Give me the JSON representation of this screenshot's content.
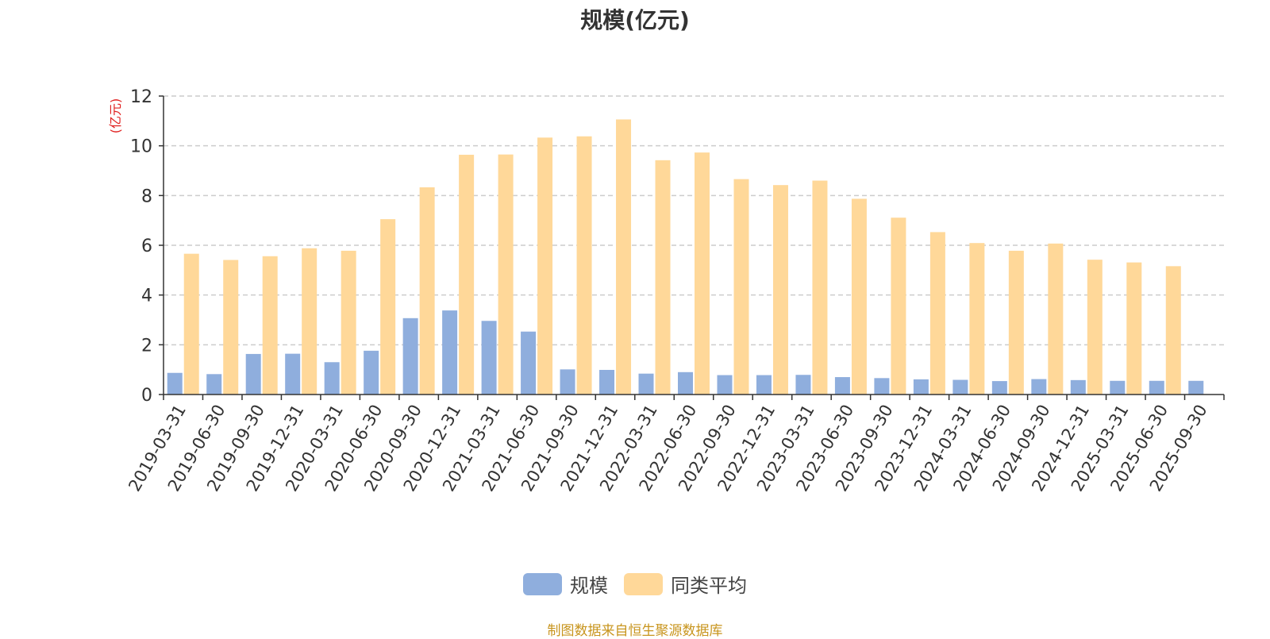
{
  "colors": {
    "series1": "#8faedd",
    "series2": "#ffd899",
    "axis": "#333333",
    "grid": "#cccccc",
    "tick_label": "#333333",
    "unit_label": "#e0201f",
    "source": "#c8951e"
  },
  "chart_data": {
    "type": "bar",
    "title": "规模(亿元)",
    "y_unit": "(亿元)",
    "grid": true,
    "legend_position": "bottom",
    "ylim": [
      0,
      12
    ],
    "yticks": [
      0,
      2,
      4,
      6,
      8,
      10,
      12
    ],
    "categories": [
      "2019-03-31",
      "2019-06-30",
      "2019-09-30",
      "2019-12-31",
      "2020-03-31",
      "2020-06-30",
      "2020-09-30",
      "2020-12-31",
      "2021-03-31",
      "2021-06-30",
      "2021-09-30",
      "2021-12-31",
      "2022-03-31",
      "2022-06-30",
      "2022-09-30",
      "2022-12-31",
      "2023-03-31",
      "2023-06-30",
      "2023-09-30",
      "2023-12-31",
      "2024-03-31",
      "2024-06-30",
      "2024-09-30",
      "2024-12-31",
      "2025-03-31",
      "2025-06-30",
      "2025-09-30"
    ],
    "series": [
      {
        "name": "规模",
        "values": [
          0.87,
          0.82,
          1.63,
          1.64,
          1.3,
          1.76,
          3.07,
          3.38,
          2.96,
          2.53,
          1.01,
          0.99,
          0.84,
          0.9,
          0.78,
          0.78,
          0.79,
          0.7,
          0.66,
          0.61,
          0.59,
          0.54,
          0.62,
          0.58,
          0.55,
          0.55,
          0.55
        ]
      },
      {
        "name": "同类平均",
        "values": [
          5.66,
          5.41,
          5.56,
          5.88,
          5.78,
          7.05,
          8.33,
          9.64,
          9.65,
          10.33,
          10.38,
          11.06,
          9.42,
          9.73,
          8.66,
          8.42,
          8.6,
          7.87,
          7.11,
          6.53,
          6.09,
          5.78,
          6.07,
          5.42,
          5.31,
          5.16,
          null
        ]
      }
    ]
  },
  "legend": {
    "items": [
      "规模",
      "同类平均"
    ]
  },
  "footer": {
    "source": "制图数据来自恒生聚源数据库"
  }
}
